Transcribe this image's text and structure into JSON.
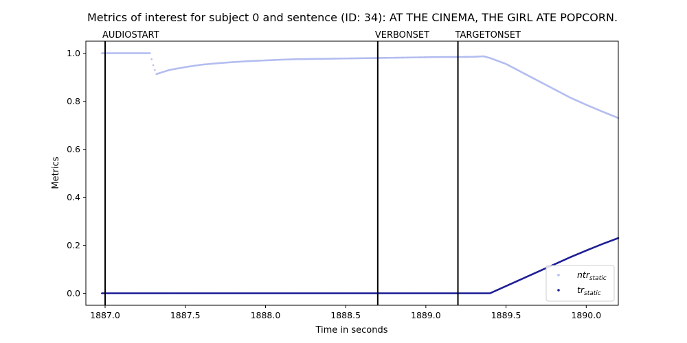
{
  "chart_data": {
    "type": "scatter",
    "title": "Metrics of interest for subject 0 and sentence (ID: 34): AT THE CINEMA, THE GIRL ATE POPCORN.",
    "xlabel": "Time in seconds",
    "ylabel": "Metrics",
    "xlim": [
      1886.88,
      1890.2
    ],
    "ylim": [
      -0.05,
      1.05
    ],
    "xticks": [
      1887.0,
      1887.5,
      1888.0,
      1888.5,
      1889.0,
      1889.5,
      1890.0
    ],
    "xtick_labels": [
      "1887.0",
      "1887.5",
      "1888.0",
      "1888.5",
      "1889.0",
      "1889.5",
      "1890.0"
    ],
    "yticks": [
      0.0,
      0.2,
      0.4,
      0.6,
      0.8,
      1.0
    ],
    "ytick_labels": [
      "0.0",
      "0.2",
      "0.4",
      "0.6",
      "0.8",
      "1.0"
    ],
    "grid": false,
    "legend_position": "lower-right",
    "event_lines": [
      {
        "label": "AUDIOSTART",
        "x": 1887.0
      },
      {
        "label": "VERBONSET",
        "x": 1888.7
      },
      {
        "label": "TARGETONSET",
        "x": 1889.2
      }
    ],
    "series": [
      {
        "name": "ntr",
        "subscript": "static",
        "color": "#b3bdf0",
        "points": [
          [
            1886.98,
            1.0
          ],
          [
            1887.1,
            1.0
          ],
          [
            1887.2,
            1.0
          ],
          [
            1887.28,
            1.0
          ],
          [
            1887.29,
            0.975
          ],
          [
            1887.3,
            0.95
          ],
          [
            1887.31,
            0.93
          ],
          [
            1887.32,
            0.913
          ],
          [
            1887.4,
            0.93
          ],
          [
            1887.5,
            0.942
          ],
          [
            1887.6,
            0.952
          ],
          [
            1887.7,
            0.958
          ],
          [
            1887.8,
            0.963
          ],
          [
            1887.9,
            0.967
          ],
          [
            1888.0,
            0.97
          ],
          [
            1888.1,
            0.973
          ],
          [
            1888.2,
            0.975
          ],
          [
            1888.3,
            0.976
          ],
          [
            1888.4,
            0.977
          ],
          [
            1888.5,
            0.978
          ],
          [
            1888.6,
            0.979
          ],
          [
            1888.7,
            0.98
          ],
          [
            1888.8,
            0.981
          ],
          [
            1888.9,
            0.982
          ],
          [
            1889.0,
            0.983
          ],
          [
            1889.1,
            0.984
          ],
          [
            1889.2,
            0.984
          ],
          [
            1889.3,
            0.985
          ],
          [
            1889.36,
            0.987
          ],
          [
            1889.4,
            0.98
          ],
          [
            1889.5,
            0.955
          ],
          [
            1889.6,
            0.92
          ],
          [
            1889.7,
            0.885
          ],
          [
            1889.8,
            0.85
          ],
          [
            1889.9,
            0.815
          ],
          [
            1890.0,
            0.785
          ],
          [
            1890.1,
            0.757
          ],
          [
            1890.2,
            0.73
          ]
        ]
      },
      {
        "name": "tr",
        "subscript": "static",
        "color": "#1f1f96",
        "points": [
          [
            1886.98,
            0.0
          ],
          [
            1887.5,
            0.0
          ],
          [
            1888.0,
            0.0
          ],
          [
            1888.5,
            0.0
          ],
          [
            1889.0,
            0.0
          ],
          [
            1889.2,
            0.0
          ],
          [
            1889.3,
            0.0
          ],
          [
            1889.4,
            0.0
          ],
          [
            1889.45,
            0.015
          ],
          [
            1889.5,
            0.03
          ],
          [
            1889.6,
            0.06
          ],
          [
            1889.7,
            0.09
          ],
          [
            1889.8,
            0.12
          ],
          [
            1889.9,
            0.15
          ],
          [
            1890.0,
            0.178
          ],
          [
            1890.1,
            0.205
          ],
          [
            1890.2,
            0.23
          ]
        ]
      }
    ]
  }
}
